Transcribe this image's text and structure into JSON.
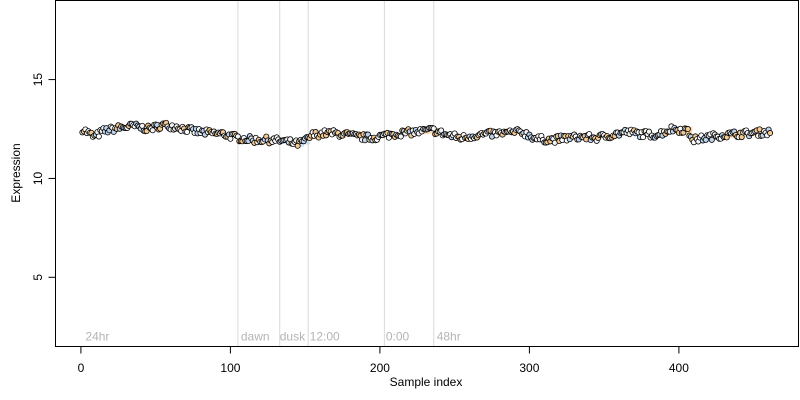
{
  "chart_data": {
    "type": "scatter",
    "title": "",
    "xlabel": "Sample index",
    "ylabel": "Expression",
    "xlim": [
      -17,
      480
    ],
    "ylim": [
      1.5,
      19
    ],
    "x_ticks": [
      0,
      100,
      200,
      300,
      400
    ],
    "y_ticks": [
      5,
      10,
      15
    ],
    "grid": false,
    "legend": "none",
    "vlines": [
      105,
      133,
      152,
      203,
      236
    ],
    "annotations": [
      {
        "x": 3,
        "text": "24hr"
      },
      {
        "x": 107,
        "text": "dawn"
      },
      {
        "x": 133,
        "text": "dusk"
      },
      {
        "x": 153,
        "text": "12:00"
      },
      {
        "x": 204,
        "text": "0:00"
      },
      {
        "x": 238,
        "text": "48hr"
      }
    ],
    "annotation_y": 2,
    "series": [
      {
        "point_count": 461,
        "x_start": 1,
        "x_end": 461,
        "trend": [
          [
            1,
            12.5
          ],
          [
            5,
            12.3
          ],
          [
            9,
            12.1
          ],
          [
            15,
            12.4
          ],
          [
            25,
            12.55
          ],
          [
            35,
            12.65
          ],
          [
            45,
            12.5
          ],
          [
            55,
            12.7
          ],
          [
            65,
            12.6
          ],
          [
            75,
            12.4
          ],
          [
            85,
            12.3
          ],
          [
            95,
            12.25
          ],
          [
            105,
            12.05
          ],
          [
            115,
            11.95
          ],
          [
            125,
            11.95
          ],
          [
            135,
            11.9
          ],
          [
            145,
            11.75
          ],
          [
            150,
            11.9
          ],
          [
            155,
            12.2
          ],
          [
            165,
            12.3
          ],
          [
            175,
            12.25
          ],
          [
            185,
            12.1
          ],
          [
            195,
            12.05
          ],
          [
            205,
            12.2
          ],
          [
            215,
            12.3
          ],
          [
            225,
            12.35
          ],
          [
            235,
            12.45
          ],
          [
            245,
            12.2
          ],
          [
            255,
            12.05
          ],
          [
            265,
            12.2
          ],
          [
            275,
            12.25
          ],
          [
            285,
            12.3
          ],
          [
            295,
            12.35
          ],
          [
            305,
            12.0
          ],
          [
            315,
            11.95
          ],
          [
            325,
            12.05
          ],
          [
            335,
            12.1
          ],
          [
            345,
            12.05
          ],
          [
            355,
            12.2
          ],
          [
            365,
            12.35
          ],
          [
            375,
            12.25
          ],
          [
            385,
            12.2
          ],
          [
            395,
            12.5
          ],
          [
            405,
            12.45
          ],
          [
            410,
            11.95
          ],
          [
            420,
            12.1
          ],
          [
            430,
            12.2
          ],
          [
            440,
            12.25
          ],
          [
            450,
            12.3
          ],
          [
            461,
            12.35
          ]
        ],
        "noise": 0.17,
        "colors": [
          "#f5c98f",
          "#bcd3ee",
          "#ffffff",
          "#f3f3f3"
        ],
        "stroke": "#000000"
      }
    ]
  }
}
